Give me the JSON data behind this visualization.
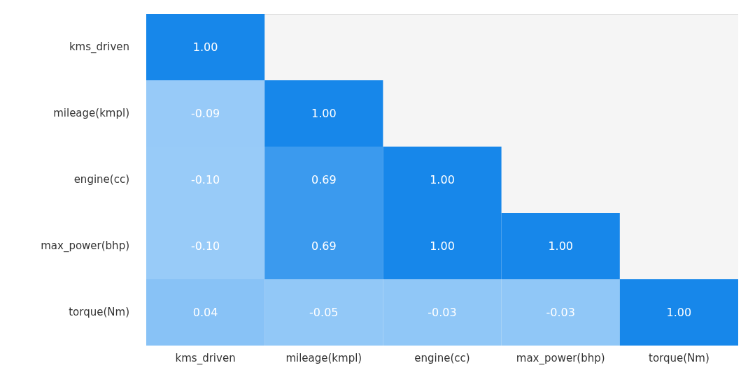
{
  "chart_data": {
    "type": "heatmap",
    "categories": [
      "kms_driven",
      "mileage(kmpl)",
      "engine(cc)",
      "max_power(bhp)",
      "torque(Nm)"
    ],
    "y_categories": [
      "kms_driven",
      "mileage(kmpl)",
      "engine(cc)",
      "max_power(bhp)",
      "torque(Nm)"
    ],
    "cells": [
      [
        1.0,
        null,
        null,
        null,
        null
      ],
      [
        -0.09,
        1.0,
        null,
        null,
        null
      ],
      [
        -0.1,
        0.69,
        1.0,
        null,
        null
      ],
      [
        -0.1,
        0.69,
        1.0,
        1.0,
        null
      ],
      [
        0.04,
        -0.05,
        -0.03,
        -0.03,
        1.0
      ]
    ],
    "cell_labels": [
      [
        "1.00",
        null,
        null,
        null,
        null
      ],
      [
        "-0.09",
        "1.00",
        null,
        null,
        null
      ],
      [
        "-0.10",
        "0.69",
        "1.00",
        null,
        null
      ],
      [
        "-0.10",
        "0.69",
        "1.00",
        "1.00",
        null
      ],
      [
        "0.04",
        "-0.05",
        "-0.03",
        "-0.03",
        "1.00"
      ]
    ],
    "colors": [
      "#98cbf8",
      "#1787ea"
    ]
  }
}
